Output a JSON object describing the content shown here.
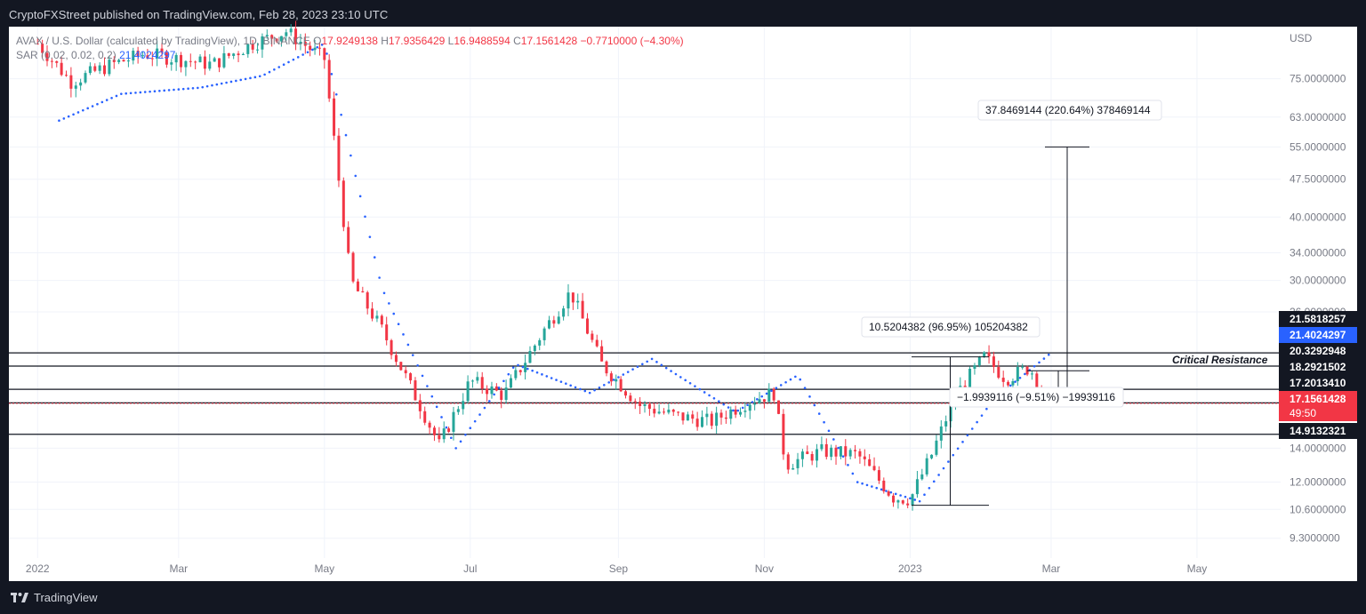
{
  "header": {
    "publish_line": "CryptoFXStreet published on TradingView.com, Feb 28, 2023 23:10 UTC"
  },
  "legend": {
    "symbol": "AVAX / U.S. Dollar (calculated by TradingView), 1D, BINANCE",
    "open_label": "O",
    "open": "17.9249138",
    "high_label": "H",
    "high": "17.9356429",
    "low_label": "L",
    "low": "16.9488594",
    "close_label": "C",
    "close": "17.1561428",
    "change": "−0.7710000 (−4.30%)",
    "indicator_name": "SAR (0.02, 0.02, 0.2)",
    "indicator_value": "21.4024297"
  },
  "footer": {
    "brand": "TradingView"
  },
  "colors": {
    "background": "#131722",
    "up": "#26a69a",
    "down": "#f23645",
    "sar": "#2962ff",
    "price_tag": "#f23645",
    "sar_tag": "#2962ff",
    "level_tag": "#131722"
  },
  "annotations": {
    "critical_resistance": "Critical Resistance",
    "measure_1": "10.5204382 (96.95%) 105204382",
    "measure_2": "37.8469144 (220.64%) 378469144",
    "measure_3": "−1.9939116 (−9.51%) −19939116"
  },
  "price_tags": {
    "level_a": "21.5818257",
    "sar": "21.4024297",
    "level_b": "20.3292948",
    "level_c": "18.2921502",
    "level_d": "17.2013410",
    "last_price": "17.1561428",
    "countdown": "49:50",
    "level_e": "14.9132321"
  },
  "chart_data": {
    "type": "line",
    "title": "AVAX / U.S. Dollar (calculated by TradingView), 1D, BINANCE",
    "currency_label": "USD",
    "y_scale": "log",
    "y_ticks": [
      "75.0000000",
      "63.0000000",
      "55.0000000",
      "47.5000000",
      "40.0000000",
      "34.0000000",
      "30.0000000",
      "26.0000000",
      "14.0000000",
      "12.0000000",
      "10.6000000",
      "9.3000000"
    ],
    "x_ticks": [
      "2022",
      "Mar",
      "May",
      "Jul",
      "Sep",
      "Nov",
      "2023",
      "Mar",
      "May"
    ],
    "ylim": [
      8.5,
      95
    ],
    "horizontal_levels": [
      21.5818257,
      20.3292948,
      18.2921502,
      17.201341,
      17.1561428,
      14.9132321
    ],
    "series": [
      {
        "name": "AVAX/USD",
        "x": [
          "2022-01-01",
          "2022-01-15",
          "2022-02-01",
          "2022-02-15",
          "2022-03-01",
          "2022-03-15",
          "2022-04-01",
          "2022-04-15",
          "2022-05-01",
          "2022-05-12",
          "2022-05-25",
          "2022-06-10",
          "2022-06-18",
          "2022-07-01",
          "2022-07-15",
          "2022-08-01",
          "2022-08-12",
          "2022-08-25",
          "2022-09-10",
          "2022-09-25",
          "2022-10-10",
          "2022-10-25",
          "2022-11-05",
          "2022-11-10",
          "2022-11-25",
          "2022-12-10",
          "2022-12-25",
          "2023-01-01",
          "2023-01-10",
          "2023-01-20",
          "2023-02-01",
          "2023-02-10",
          "2023-02-20",
          "2023-02-28"
        ],
        "values": [
          88,
          74,
          80,
          84,
          82,
          80,
          88,
          93,
          82,
          30,
          24,
          17,
          14.2,
          19,
          17.8,
          24,
          28.5,
          20.5,
          17.0,
          16.2,
          15.8,
          17.3,
          18.0,
          13.0,
          13.8,
          13.6,
          11.2,
          11.1,
          13.6,
          17.8,
          21.2,
          19.2,
          20.2,
          17.16
        ]
      },
      {
        "name": "SAR (0.02, 0.02, 0.2)",
        "x": [
          "2022-01-10",
          "2022-02-05",
          "2022-03-10",
          "2022-04-05",
          "2022-05-01",
          "2022-05-25",
          "2022-06-25",
          "2022-07-20",
          "2022-08-20",
          "2022-09-15",
          "2022-10-20",
          "2022-11-15",
          "2022-12-10",
          "2023-01-05",
          "2023-02-05",
          "2023-02-28"
        ],
        "values": [
          62,
          70,
          72,
          76,
          88,
          29,
          14.0,
          20.5,
          18.0,
          21.0,
          16.5,
          19.5,
          12.0,
          11.0,
          17.5,
          21.4024297
        ]
      }
    ]
  }
}
